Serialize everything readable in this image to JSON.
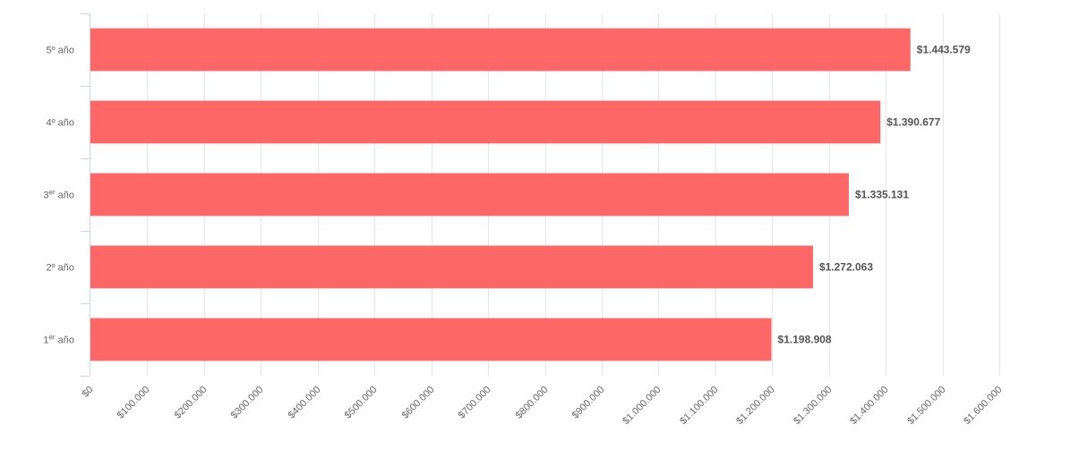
{
  "chart_data": {
    "type": "bar",
    "orientation": "horizontal",
    "categories": [
      {
        "main": "5º año",
        "sup": ""
      },
      {
        "main": "4º año",
        "sup": ""
      },
      {
        "main": "3",
        "sup": "er",
        "suffix": " año"
      },
      {
        "main": "2º año",
        "sup": ""
      },
      {
        "main": "1",
        "sup": "er",
        "suffix": " año"
      }
    ],
    "values": [
      1443579,
      1390677,
      1335131,
      1272063,
      1198908
    ],
    "value_labels": [
      "$1.443.579",
      "$1.390.677",
      "$1.335.131",
      "$1.272.063",
      "$1.198.908"
    ],
    "x_ticks": [
      "$0",
      "$100.000",
      "$200.000",
      "$300.000",
      "$400.000",
      "$500.000",
      "$600.000",
      "$700.000",
      "$800.000",
      "$900.000",
      "$1.000.000",
      "$1.100.000",
      "$1.200.000",
      "$1.300.000",
      "$1.400.000",
      "$1.500.000",
      "$1.600.000"
    ],
    "xlim": [
      0,
      1600000
    ],
    "grid": true,
    "bar_color": "#ff6666",
    "title": "",
    "xlabel": "",
    "ylabel": ""
  }
}
